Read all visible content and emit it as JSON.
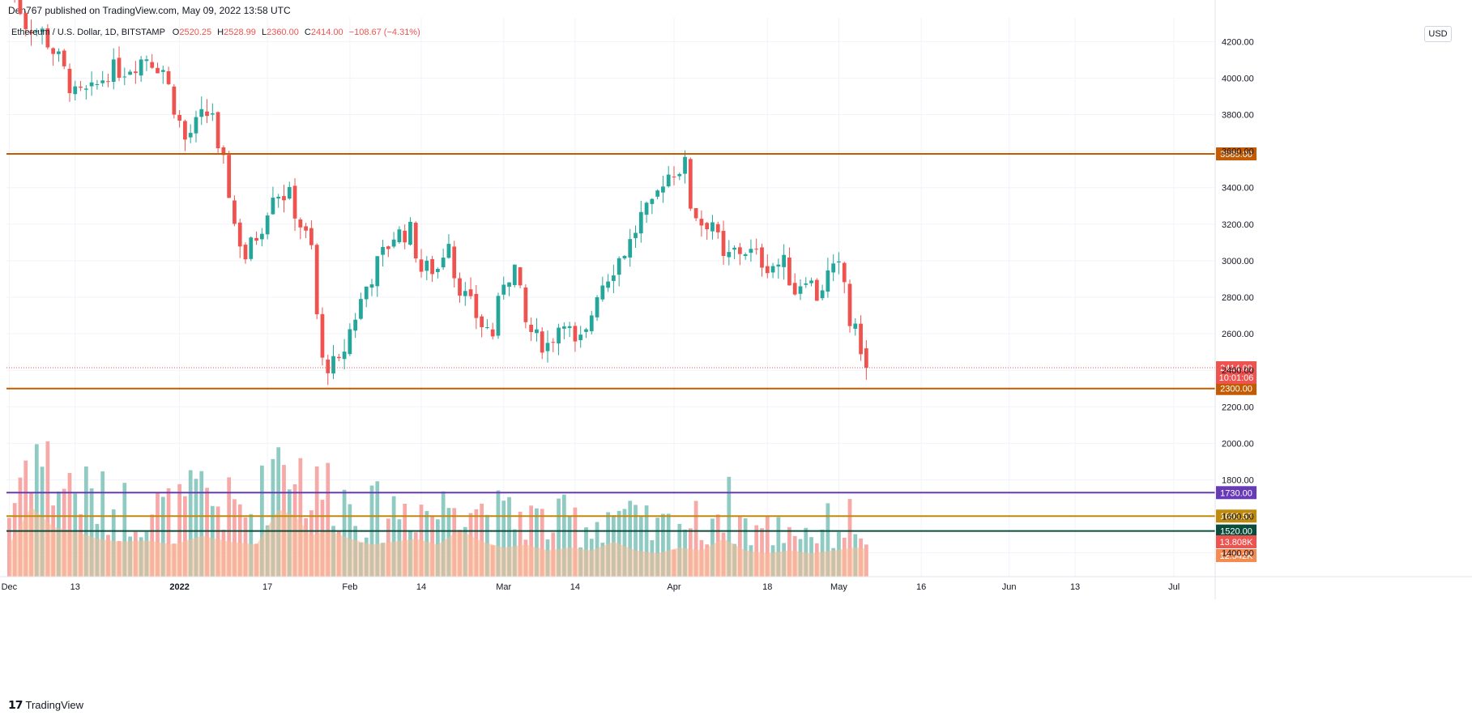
{
  "header": {
    "published_by": "Den767 published on TradingView.com, May 09, 2022 13:58 UTC"
  },
  "legend": {
    "symbol": "Ethereum / U.S. Dollar, 1D, BITSTAMP",
    "open_label": "O",
    "open": "2520.25",
    "high_label": "H",
    "high": "2528.99",
    "low_label": "L",
    "low": "2360.00",
    "close_label": "C",
    "close": "2414.00",
    "change": "−108.67 (−4.31%)"
  },
  "currency_badge": "USD",
  "footer": {
    "brand": "TradingView"
  },
  "colors": {
    "up": "#26a69a",
    "down": "#ef5350",
    "vol_up": "#8fcbc3",
    "vol_down": "#f7a9a7",
    "vol_ma": "#f8bc95",
    "vol_ma_dark": "#f58b50",
    "level_orange": "#c45b02",
    "level_purple": "#673ab7",
    "level_gold": "#c08a0b",
    "level_dark": "#0b4d3c"
  },
  "chart_data": {
    "type": "candlestick",
    "symbol": "ETHUSD",
    "interval": "1D",
    "price_axis": {
      "ticks": [
        "4200.00",
        "4000.00",
        "3800.00",
        "3600.00",
        "3400.00",
        "3200.00",
        "3000.00",
        "2800.00",
        "2600.00",
        "2400.00",
        "2200.00",
        "2000.00",
        "1800.00",
        "1600.00",
        "1400.00"
      ],
      "range": [
        1270,
        4330
      ]
    },
    "time_axis": {
      "labels": [
        {
          "text": "Dec",
          "index": 0,
          "bold": false
        },
        {
          "text": "13",
          "index": 12,
          "bold": false
        },
        {
          "text": "2022",
          "index": 31,
          "bold": true
        },
        {
          "text": "17",
          "index": 47,
          "bold": false
        },
        {
          "text": "Feb",
          "index": 62,
          "bold": false
        },
        {
          "text": "14",
          "index": 75,
          "bold": false
        },
        {
          "text": "Mar",
          "index": 90,
          "bold": false
        },
        {
          "text": "14",
          "index": 103,
          "bold": false
        },
        {
          "text": "Apr",
          "index": 121,
          "bold": false
        },
        {
          "text": "18",
          "index": 138,
          "bold": false
        },
        {
          "text": "May",
          "index": 151,
          "bold": false
        },
        {
          "text": "16",
          "index": 166,
          "bold": false
        },
        {
          "text": "Jun",
          "index": 182,
          "bold": false
        },
        {
          "text": "13",
          "index": 194,
          "bold": false
        },
        {
          "text": "Jul",
          "index": 212,
          "bold": false
        }
      ],
      "total_slots": 220
    },
    "levels": [
      {
        "value": 3585.0,
        "label": "3585.00",
        "color": "#c45b02"
      },
      {
        "value": 2300.0,
        "label": "2300.00",
        "color": "#c45b02"
      },
      {
        "value": 1730.0,
        "label": "1730.00",
        "color": "#673ab7"
      },
      {
        "value": 1601.57,
        "label": "1601.57",
        "color": "#c08a0b"
      },
      {
        "value": 1520.0,
        "label": "1520.00",
        "color": "#0b4d3c"
      }
    ],
    "last_price": {
      "value": 2414.0,
      "label": "2414.00",
      "countdown": "10:01:06"
    },
    "volume_badges": {
      "current": "13.808K",
      "average": "12.542K"
    },
    "waypoints": [
      [
        0,
        4530
      ],
      [
        3,
        4300
      ],
      [
        6,
        4250
      ],
      [
        9,
        4100
      ],
      [
        12,
        3900
      ],
      [
        15,
        3920
      ],
      [
        18,
        4040
      ],
      [
        21,
        4050
      ],
      [
        25,
        4120
      ],
      [
        28,
        4050
      ],
      [
        30,
        3850
      ],
      [
        32,
        3660
      ],
      [
        35,
        3780
      ],
      [
        37,
        3820
      ],
      [
        38,
        3570
      ],
      [
        39,
        3520
      ],
      [
        40,
        3380
      ],
      [
        41,
        3200
      ],
      [
        43,
        3020
      ],
      [
        46,
        3200
      ],
      [
        48,
        3390
      ],
      [
        51,
        3350
      ],
      [
        53,
        3200
      ],
      [
        55,
        3060
      ],
      [
        56,
        2700
      ],
      [
        57,
        2440
      ],
      [
        60,
        2420
      ],
      [
        62,
        2620
      ],
      [
        65,
        2860
      ],
      [
        67,
        2980
      ],
      [
        70,
        3140
      ],
      [
        73,
        3160
      ],
      [
        75,
        2950
      ],
      [
        78,
        2960
      ],
      [
        80,
        3140
      ],
      [
        81,
        2930
      ],
      [
        83,
        2800
      ],
      [
        86,
        2650
      ],
      [
        88,
        2600
      ],
      [
        90,
        2900
      ],
      [
        92,
        2960
      ],
      [
        94,
        2650
      ],
      [
        96,
        2570
      ],
      [
        98,
        2540
      ],
      [
        101,
        2700
      ],
      [
        103,
        2520
      ],
      [
        105,
        2590
      ],
      [
        107,
        2840
      ],
      [
        110,
        2970
      ],
      [
        113,
        3100
      ],
      [
        115,
        3240
      ],
      [
        117,
        3280
      ],
      [
        119,
        3450
      ],
      [
        121,
        3500
      ],
      [
        123,
        3520
      ],
      [
        124,
        3310
      ],
      [
        126,
        3210
      ],
      [
        128,
        3220
      ],
      [
        130,
        2990
      ],
      [
        132,
        3050
      ],
      [
        134,
        3060
      ],
      [
        136,
        3020
      ],
      [
        138,
        2980
      ],
      [
        141,
        2980
      ],
      [
        143,
        2840
      ],
      [
        145,
        2930
      ],
      [
        147,
        2810
      ],
      [
        149,
        2920
      ],
      [
        151,
        2950
      ],
      [
        152,
        2880
      ],
      [
        153,
        2660
      ],
      [
        154,
        2600
      ],
      [
        155,
        2530
      ],
      [
        156,
        2414
      ]
    ],
    "volume_waypoints": [
      [
        0,
        5.5
      ],
      [
        4,
        12.0
      ],
      [
        8,
        8.5
      ],
      [
        12,
        7.8
      ],
      [
        16,
        6.5
      ],
      [
        20,
        6.0
      ],
      [
        25,
        6.2
      ],
      [
        30,
        5.5
      ],
      [
        35,
        7.0
      ],
      [
        40,
        6.0
      ],
      [
        45,
        5.5
      ],
      [
        49,
        11.5
      ],
      [
        52,
        10.5
      ],
      [
        55,
        7.0
      ],
      [
        58,
        8.0
      ],
      [
        62,
        6.5
      ],
      [
        66,
        5.5
      ],
      [
        70,
        6.0
      ],
      [
        74,
        6.5
      ],
      [
        78,
        5.5
      ],
      [
        82,
        8.0
      ],
      [
        86,
        6.0
      ],
      [
        90,
        5.0
      ],
      [
        94,
        5.5
      ],
      [
        98,
        4.5
      ],
      [
        102,
        5.0
      ],
      [
        106,
        4.5
      ],
      [
        110,
        6.0
      ],
      [
        114,
        4.5
      ],
      [
        118,
        4.0
      ],
      [
        122,
        5.0
      ],
      [
        126,
        4.5
      ],
      [
        130,
        6.5
      ],
      [
        134,
        4.5
      ],
      [
        138,
        4.0
      ],
      [
        142,
        4.5
      ],
      [
        146,
        4.0
      ],
      [
        150,
        4.5
      ],
      [
        154,
        5.0
      ],
      [
        156,
        4.8
      ]
    ]
  }
}
